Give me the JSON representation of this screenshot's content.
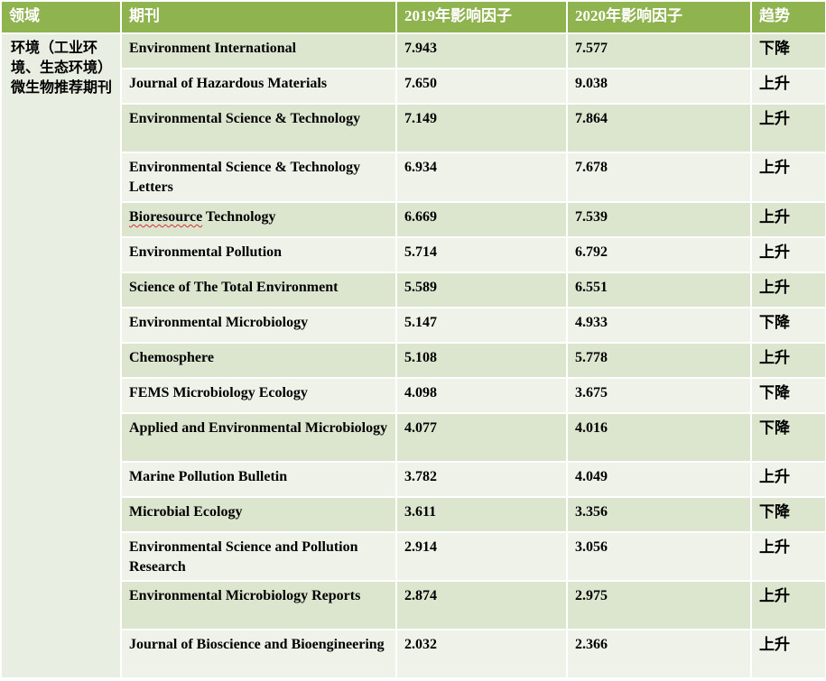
{
  "headers": {
    "field": "领域",
    "journal": "期刊",
    "if2019": "2019年影响因子",
    "if2020": "2020年影响因子",
    "trend": "趋势"
  },
  "field_label": "环境（工业环境、生态环境）微生物推荐期刊",
  "rows": [
    {
      "journal": "Environment International",
      "if2019": "7.943",
      "if2020": "7.577",
      "trend": "下降"
    },
    {
      "journal": "Journal of Hazardous Materials",
      "if2019": "7.650",
      "if2020": "9.038",
      "trend": "上升"
    },
    {
      "journal": "Environmental Science & Technology",
      "if2019": "7.149",
      "if2020": "7.864",
      "trend": "上升"
    },
    {
      "journal": "Environmental Science & Technology Letters",
      "if2019": "6.934",
      "if2020": "7.678",
      "trend": "上升"
    },
    {
      "journal": "Bioresource Technology",
      "if2019": "6.669",
      "if2020": "7.539",
      "trend": "上升"
    },
    {
      "journal": "Environmental Pollution",
      "if2019": "5.714",
      "if2020": "6.792",
      "trend": "上升"
    },
    {
      "journal": "Science of The Total Environment",
      "if2019": "5.589",
      "if2020": "6.551",
      "trend": "上升"
    },
    {
      "journal": "Environmental Microbiology",
      "if2019": "5.147",
      "if2020": "4.933",
      "trend": "下降"
    },
    {
      "journal": "Chemosphere",
      "if2019": "5.108",
      "if2020": "5.778",
      "trend": "上升"
    },
    {
      "journal": "FEMS Microbiology Ecology",
      "if2019": "4.098",
      "if2020": "3.675",
      "trend": "下降"
    },
    {
      "journal": "Applied  and Environmental Microbiology",
      "if2019": "4.077",
      "if2020": "4.016",
      "trend": "下降"
    },
    {
      "journal": "Marine Pollution Bulletin",
      "if2019": "3.782",
      "if2020": "4.049",
      "trend": "上升"
    },
    {
      "journal": "Microbial Ecology",
      "if2019": "3.611",
      "if2020": "3.356",
      "trend": "下降"
    },
    {
      "journal": "Environmental Science and Pollution Research",
      "if2019": "2.914",
      "if2020": "3.056",
      "trend": "上升"
    },
    {
      "journal": "Environmental Microbiology Reports",
      "if2019": "2.874",
      "if2020": "2.975",
      "trend": "上升"
    },
    {
      "journal": "Journal of Bioscience and Bioengineering",
      "if2019": "2.032",
      "if2020": "2.366",
      "trend": "上升"
    }
  ]
}
